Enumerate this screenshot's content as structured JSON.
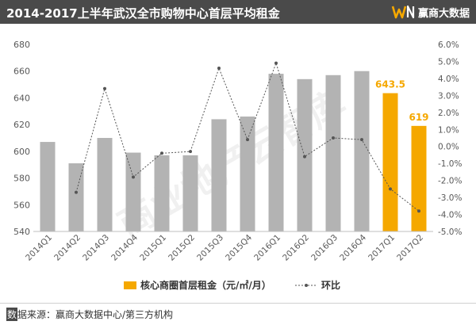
{
  "header": {
    "title": "2014-2017上半年武汉全市购物中心首层平均租金",
    "logo_text": "赢商大数据",
    "logo_mark": "WIN"
  },
  "watermark": {
    "text": "商业地产云智库"
  },
  "footer": {
    "source_first": "数",
    "source_rest": "据来源：赢商大数据中心/第三方机构"
  },
  "colors": {
    "bar_gray": "#b3b3b3",
    "bar_highlight": "#f5a800",
    "line": "#555555",
    "header_bg": "#4a4a4a"
  },
  "chart_data": {
    "type": "bar",
    "title": "2014-2017上半年武汉全市购物中心首层平均租金",
    "categories": [
      "2014Q1",
      "2014Q2",
      "2014Q3",
      "2014Q4",
      "2015Q1",
      "2015Q2",
      "2015Q3",
      "2015Q4",
      "2016Q1",
      "2016Q2",
      "2016Q3",
      "2016Q4",
      "2017Q1",
      "2017Q2"
    ],
    "series": [
      {
        "name": "核心商圈首层租金（元/㎡/月）",
        "kind": "bar",
        "axis": "left",
        "values": [
          607,
          591,
          610,
          599,
          597,
          597,
          624,
          626,
          658,
          654,
          657,
          660,
          643.5,
          619
        ],
        "highlight_indices": [
          12,
          13
        ]
      },
      {
        "name": "环比",
        "kind": "line",
        "axis": "right",
        "values": [
          null,
          -2.7,
          3.4,
          -1.8,
          -0.4,
          -0.3,
          4.6,
          0.4,
          4.9,
          -0.6,
          0.5,
          0.4,
          -2.5,
          -3.8
        ]
      }
    ],
    "data_labels": [
      {
        "index": 12,
        "text": "643.5"
      },
      {
        "index": 13,
        "text": "619"
      }
    ],
    "y_left": {
      "min": 540,
      "max": 680,
      "ticks": [
        "540",
        "560",
        "580",
        "600",
        "620",
        "640",
        "660",
        "680"
      ]
    },
    "y_right": {
      "min": -5,
      "max": 6,
      "ticks": [
        "-5.0%",
        "-4.0%",
        "-3.0%",
        "-2.0%",
        "-1.0%",
        "0.0%",
        "1.0%",
        "2.0%",
        "3.0%",
        "4.0%",
        "5.0%",
        "6.0%"
      ]
    },
    "legend": {
      "placement": "bottom"
    },
    "grid": false
  }
}
